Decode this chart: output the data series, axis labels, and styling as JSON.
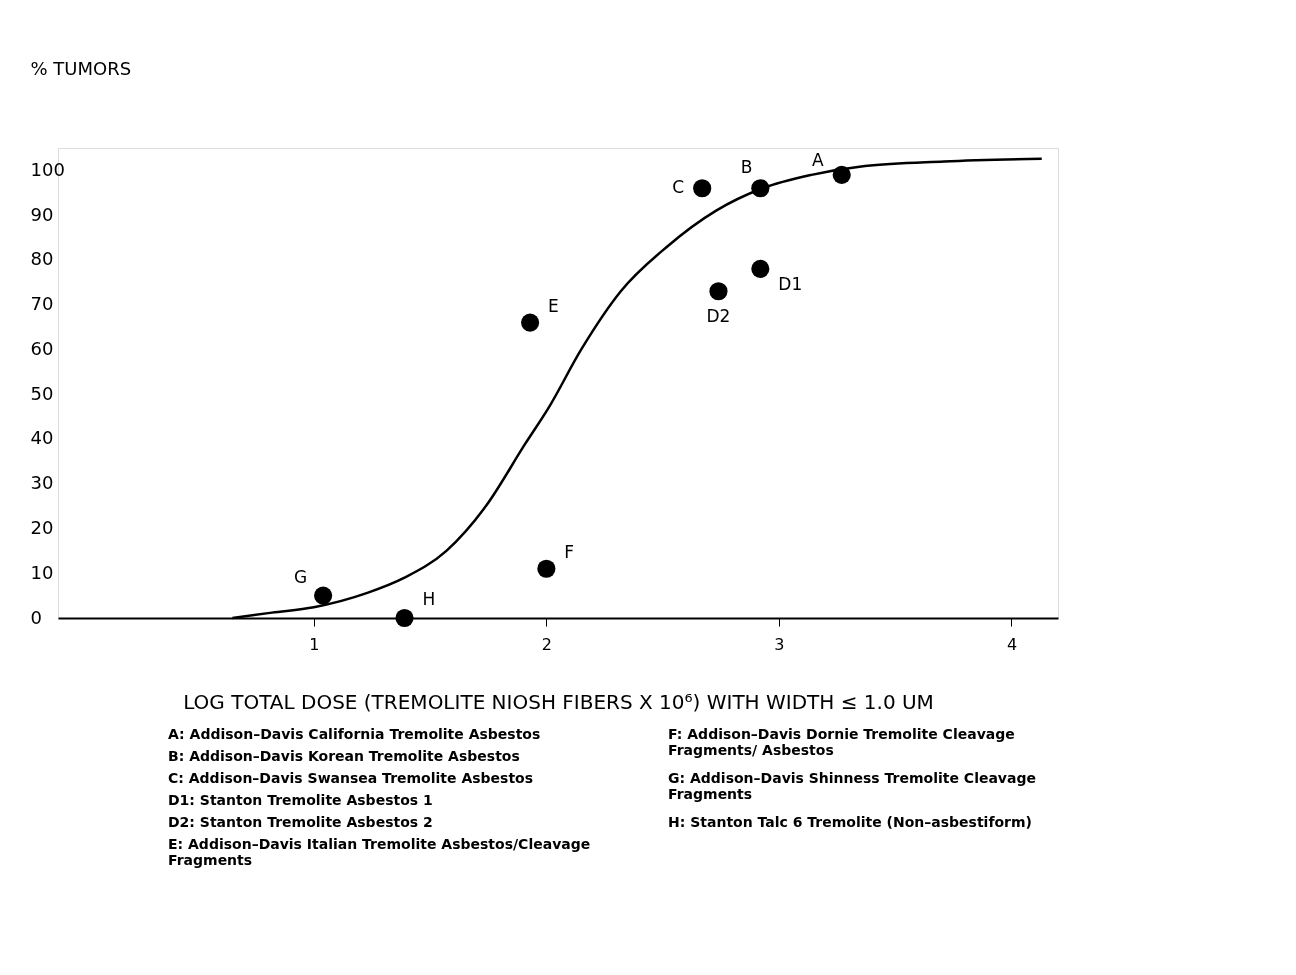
{
  "chart_data": {
    "type": "scatter",
    "xlabel": "LOG TOTAL DOSE (TREMOLITE  NIOSH  FIBERS X 10⁶) WITH WIDTH  ≤ 1.0 UM",
    "ylabel": "% TUMORS",
    "xlim": [
      -0.1,
      4.2
    ],
    "ylim": [
      0,
      105
    ],
    "xticks": [
      1,
      2,
      3,
      4
    ],
    "yticks": [
      0,
      10,
      20,
      30,
      40,
      50,
      60,
      70,
      80,
      90,
      100
    ],
    "grid": false,
    "marker": "circle",
    "series": [
      {
        "color": "#000000",
        "x": [
          3.27,
          2.92,
          2.67,
          2.92,
          2.74,
          1.93,
          2.0,
          1.04,
          1.39
        ],
        "values": [
          99,
          96,
          96,
          78,
          73,
          66,
          11,
          5,
          0
        ]
      },
      {
        "type": "line",
        "color": "#000000",
        "marker": "none",
        "line_style": "solid",
        "x": [
          0.65,
          0.82,
          1.0,
          1.23,
          1.39,
          1.57,
          1.74,
          1.91,
          2.01,
          2.15,
          2.32,
          2.52,
          2.73,
          2.93,
          3.14,
          3.37,
          3.71,
          4.13
        ],
        "values": [
          0,
          1.2,
          2.4,
          5.6,
          9,
          15,
          25,
          39,
          47,
          60,
          73,
          83,
          91,
          96,
          99,
          101,
          102,
          102.6
        ]
      }
    ],
    "annotations": [
      {
        "text": "A",
        "x": 3.27,
        "y": 99
      },
      {
        "text": "B",
        "x": 2.92,
        "y": 96
      },
      {
        "text": "C",
        "x": 2.67,
        "y": 96
      },
      {
        "text": "D1",
        "x": 2.92,
        "y": 78
      },
      {
        "text": "D2",
        "x": 2.74,
        "y": 73
      },
      {
        "text": "E",
        "x": 1.93,
        "y": 66
      },
      {
        "text": "F",
        "x": 2.0,
        "y": 11
      },
      {
        "text": "G",
        "x": 1.04,
        "y": 5
      },
      {
        "text": "H",
        "x": 1.39,
        "y": 0
      },
      "A: Addison–Davis California Tremolite Asbestos",
      "B: Addison–Davis Korean Tremolite Asbestos",
      "C: Addison–Davis Swansea Tremolite Asbestos",
      "D1: Stanton Tremolite Asbestos 1",
      "D2: Stanton Tremolite Asbestos 2",
      "E: Addison–Davis Italian Tremolite Asbestos/Cleavage Fragments",
      "F: Addison–Davis Dornie Tremolite Cleavage Fragments/ Asbestos",
      "G: Addison–Davis Shinness Tremolite Cleavage Fragments",
      "H: Stanton Talc 6 Tremolite (Non–asbestiform)"
    ]
  }
}
